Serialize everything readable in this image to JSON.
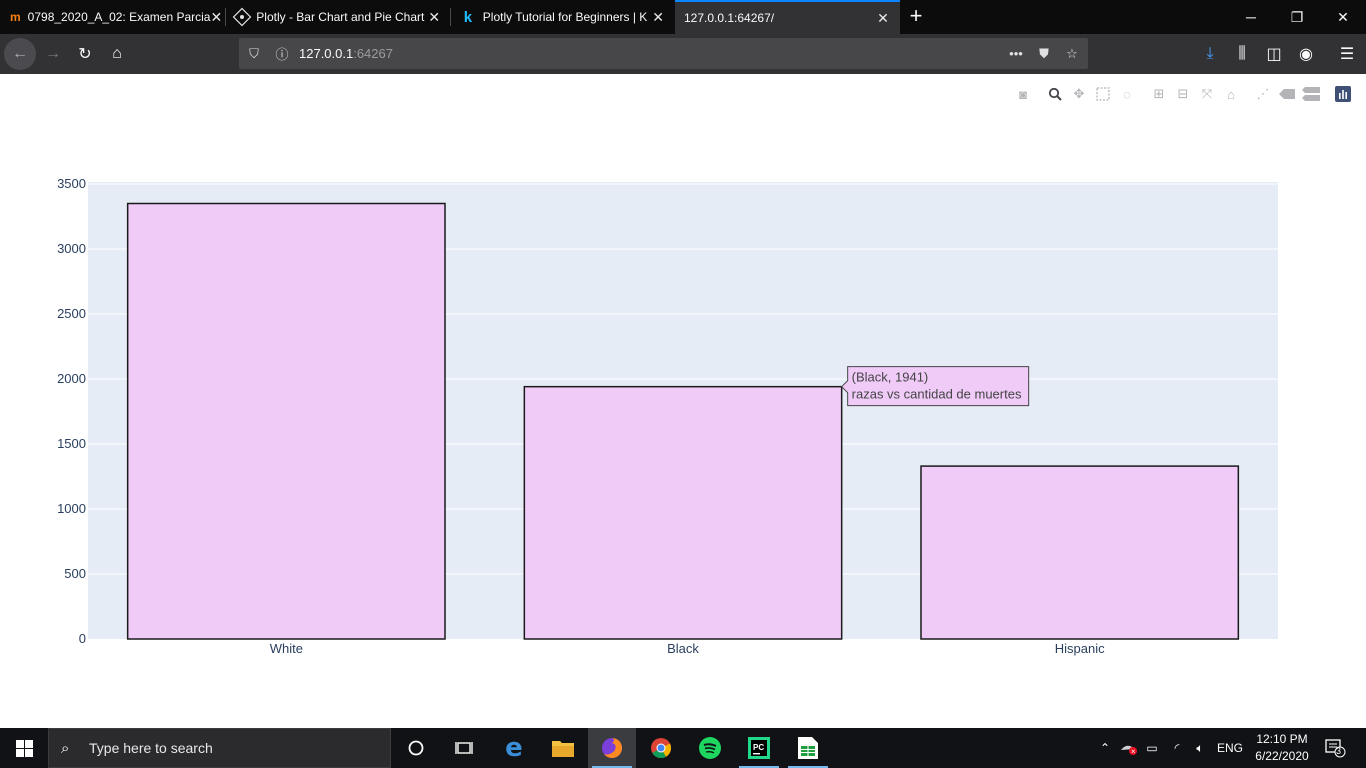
{
  "browser": {
    "tabs": [
      {
        "title": "0798_2020_A_02: Examen Parcia",
        "favicon": "moodle-icon"
      },
      {
        "title": "Plotly - Bar Chart and Pie Chart",
        "favicon": "plotly-icon"
      },
      {
        "title": "Plotly Tutorial for Beginners | K",
        "favicon": "kaggle-icon"
      },
      {
        "title": "127.0.0.1:64267/",
        "favicon": ""
      }
    ],
    "url_host": "127.0.0.1",
    "url_port": ":64267"
  },
  "chart_data": {
    "type": "bar",
    "categories": [
      "White",
      "Black",
      "Hispanic"
    ],
    "values": [
      3350,
      1941,
      1330
    ],
    "ylim": [
      0,
      3500
    ],
    "yticks": [
      0,
      500,
      1000,
      1500,
      2000,
      2500,
      3000,
      3500
    ],
    "ytick_labels": [
      "0",
      "500",
      "1000",
      "1500",
      "2000",
      "2500",
      "3000",
      "3500"
    ],
    "grid": true,
    "title": "",
    "xlabel": "",
    "ylabel": "",
    "colors": {
      "bar_fill": "#f0cbf8",
      "bar_stroke": "#1a1a1a",
      "plot_bg": "#e5ecf6",
      "grid": "#ffffff",
      "tick_text": "#2a3f5f"
    },
    "hover": {
      "category": "Black",
      "value": 1941,
      "line1": "(Black, 1941)",
      "line2": "razas vs cantidad de muertes"
    }
  },
  "modebar_icons": [
    "camera-icon",
    "zoom-icon",
    "pan-icon",
    "box-select-icon",
    "lasso-icon",
    "zoom-in-icon",
    "zoom-out-icon",
    "autoscale-icon",
    "reset-axes-icon",
    "spike-lines-icon",
    "hover-closest-icon",
    "hover-compare-icon",
    "plotly-logo-icon"
  ],
  "taskbar": {
    "search_placeholder": "Type here to search",
    "language": "ENG",
    "time": "12:10 PM",
    "date": "6/22/2020",
    "notification_count": "3"
  }
}
